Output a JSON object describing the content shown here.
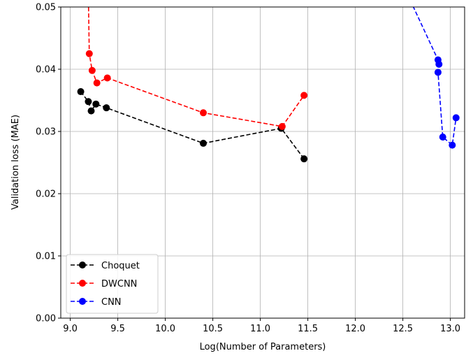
{
  "chart_data": {
    "type": "line",
    "xlabel": "Log(Number of Parameters)",
    "ylabel": "Validation loss (MAE)",
    "xlim": [
      8.9,
      13.15
    ],
    "ylim": [
      0.0,
      0.05
    ],
    "xticks": [
      "9.0",
      "9.5",
      "10.0",
      "10.5",
      "11.0",
      "11.5",
      "12.0",
      "12.5",
      "13.0"
    ],
    "yticks": [
      "0.00",
      "0.01",
      "0.02",
      "0.03",
      "0.04",
      "0.05"
    ],
    "grid": true,
    "legend_position": "lower-left",
    "series": [
      {
        "name": "Choquet",
        "color": "#000000",
        "points": [
          [
            9.11,
            0.0364
          ],
          [
            9.19,
            0.0348
          ],
          [
            9.22,
            0.0333
          ],
          [
            9.27,
            0.0344
          ],
          [
            9.38,
            0.0338
          ],
          [
            10.4,
            0.0281
          ],
          [
            11.22,
            0.0305
          ],
          [
            11.46,
            0.0256
          ]
        ]
      },
      {
        "name": "DWCNN",
        "color": "#ff0000",
        "points": [
          [
            9.19,
            0.052
          ],
          [
            9.2,
            0.0425
          ],
          [
            9.23,
            0.0398
          ],
          [
            9.28,
            0.0378
          ],
          [
            9.39,
            0.0386
          ],
          [
            10.4,
            0.033
          ],
          [
            11.23,
            0.0308
          ],
          [
            11.46,
            0.0358
          ]
        ]
      },
      {
        "name": "CNN",
        "color": "#0000ff",
        "points": [
          [
            12.55,
            0.052
          ],
          [
            12.87,
            0.0415
          ],
          [
            12.88,
            0.0408
          ],
          [
            12.87,
            0.0395
          ],
          [
            12.92,
            0.0291
          ],
          [
            13.02,
            0.0278
          ],
          [
            13.06,
            0.0322
          ]
        ]
      }
    ]
  }
}
